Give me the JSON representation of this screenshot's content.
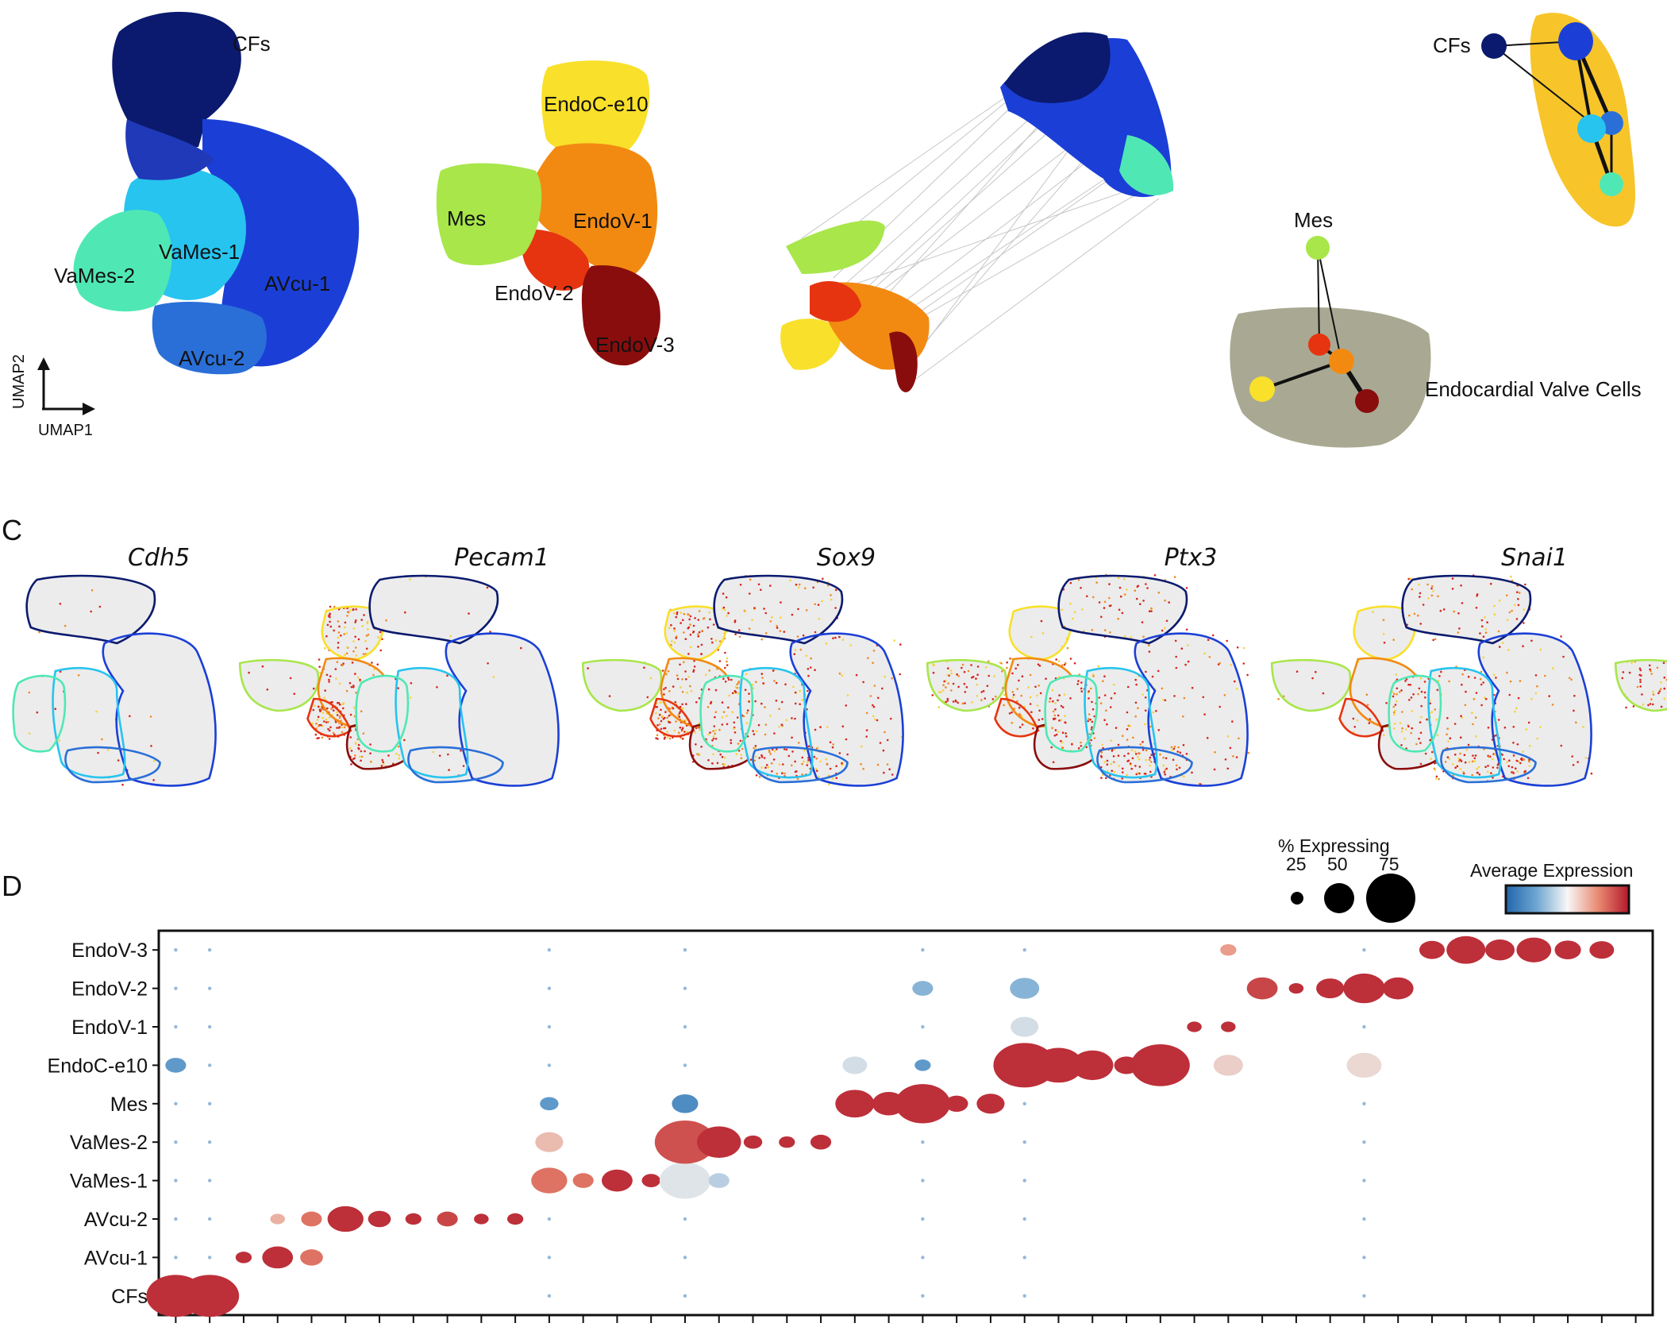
{
  "panel_letters": {
    "c": "C",
    "d": "D"
  },
  "panel_a": {
    "clusters": [
      "CFs",
      "VaMes-1",
      "VaMes-2",
      "AVcu-1",
      "AVcu-2"
    ],
    "axis_x": "UMAP1",
    "axis_y": "UMAP2"
  },
  "panel_a2": {
    "clusters": [
      "EndoC-e10",
      "Mes",
      "EndoV-1",
      "EndoV-2",
      "EndoV-3"
    ]
  },
  "panel_b_graph": {
    "nodes": [
      "CFs",
      "Mes"
    ],
    "group_label": "Endocardial Valve Cells"
  },
  "panel_c": {
    "genes": [
      "Cdh5",
      "Pecam1",
      "Sox9",
      "Ptx3",
      "Snai1"
    ]
  },
  "colors": {
    "CFs": "#0b1a6e",
    "AVcu-1": "#1b3fd6",
    "AVcu-2": "#2a6fd8",
    "VaMes-1": "#27c4ef",
    "VaMes-2": "#4fe8b5",
    "Mes": "#a8e64a",
    "EndoC-e10": "#f9e02a",
    "EndoV-1": "#f28a12",
    "EndoV-2": "#e63410",
    "EndoV-3": "#8a0d0d",
    "hull_yellow": "#f7c52a",
    "hull_olive": "#a9a993"
  },
  "chart_data": {
    "type": "dotplot",
    "legend_size_title": "% Expressing",
    "legend_size_ticks": [
      "25",
      "50",
      "75"
    ],
    "legend_color_title": "Average Expression",
    "y_categories": [
      "EndoV-3",
      "EndoV-2",
      "EndoV-1",
      "EndoC-e10",
      "Mes",
      "VaMes-2",
      "VaMes-1",
      "AVcu-2",
      "AVcu-1",
      "CFs"
    ],
    "n_columns": 44,
    "dots": [
      {
        "row": "CFs",
        "col": 0,
        "pct": 80,
        "expr": 0.9
      },
      {
        "row": "CFs",
        "col": 1,
        "pct": 80,
        "expr": 0.9
      },
      {
        "row": "AVcu-1",
        "col": 2,
        "pct": 6,
        "expr": 0.9
      },
      {
        "row": "AVcu-1",
        "col": 3,
        "pct": 22,
        "expr": 0.9
      },
      {
        "row": "AVcu-1",
        "col": 4,
        "pct": 12,
        "expr": 0.6
      },
      {
        "row": "AVcu-2",
        "col": 3,
        "pct": 5,
        "expr": 0.3
      },
      {
        "row": "AVcu-2",
        "col": 4,
        "pct": 10,
        "expr": 0.6
      },
      {
        "row": "AVcu-2",
        "col": 5,
        "pct": 30,
        "expr": 0.9
      },
      {
        "row": "AVcu-2",
        "col": 6,
        "pct": 12,
        "expr": 0.9
      },
      {
        "row": "AVcu-2",
        "col": 7,
        "pct": 6,
        "expr": 0.9
      },
      {
        "row": "AVcu-2",
        "col": 8,
        "pct": 10,
        "expr": 0.8
      },
      {
        "row": "AVcu-2",
        "col": 9,
        "pct": 5,
        "expr": 0.9
      },
      {
        "row": "AVcu-2",
        "col": 10,
        "pct": 6,
        "expr": 0.9
      },
      {
        "row": "VaMes-1",
        "col": 11,
        "pct": 30,
        "expr": 0.6
      },
      {
        "row": "VaMes-1",
        "col": 12,
        "pct": 10,
        "expr": 0.6
      },
      {
        "row": "VaMes-1",
        "col": 13,
        "pct": 22,
        "expr": 0.9
      },
      {
        "row": "VaMes-1",
        "col": 14,
        "pct": 8,
        "expr": 0.9
      },
      {
        "row": "VaMes-1",
        "col": 15,
        "pct": 60,
        "expr": -0.05
      },
      {
        "row": "VaMes-1",
        "col": 16,
        "pct": 10,
        "expr": -0.2
      },
      {
        "row": "VaMes-2",
        "col": 11,
        "pct": 18,
        "expr": 0.25
      },
      {
        "row": "VaMes-2",
        "col": 15,
        "pct": 85,
        "expr": 0.75
      },
      {
        "row": "VaMes-2",
        "col": 16,
        "pct": 45,
        "expr": 0.9
      },
      {
        "row": "VaMes-2",
        "col": 17,
        "pct": 8,
        "expr": 0.9
      },
      {
        "row": "VaMes-2",
        "col": 18,
        "pct": 6,
        "expr": 0.9
      },
      {
        "row": "VaMes-2",
        "col": 19,
        "pct": 10,
        "expr": 0.9
      },
      {
        "row": "Mes",
        "col": 11,
        "pct": 8,
        "expr": -0.6
      },
      {
        "row": "Mes",
        "col": 15,
        "pct": 16,
        "expr": -0.7
      },
      {
        "row": "Mes",
        "col": 20,
        "pct": 35,
        "expr": 0.9
      },
      {
        "row": "Mes",
        "col": 21,
        "pct": 25,
        "expr": 0.9
      },
      {
        "row": "Mes",
        "col": 22,
        "pct": 70,
        "expr": 0.9
      },
      {
        "row": "Mes",
        "col": 23,
        "pct": 12,
        "expr": 0.9
      },
      {
        "row": "Mes",
        "col": 24,
        "pct": 18,
        "expr": 0.9
      },
      {
        "row": "EndoC-e10",
        "col": 0,
        "pct": 10,
        "expr": -0.6
      },
      {
        "row": "EndoC-e10",
        "col": 20,
        "pct": 14,
        "expr": -0.1
      },
      {
        "row": "EndoC-e10",
        "col": 22,
        "pct": 6,
        "expr": -0.6
      },
      {
        "row": "EndoC-e10",
        "col": 25,
        "pct": 90,
        "expr": 0.9
      },
      {
        "row": "EndoC-e10",
        "col": 26,
        "pct": 55,
        "expr": 0.9
      },
      {
        "row": "EndoC-e10",
        "col": 27,
        "pct": 40,
        "expr": 0.9
      },
      {
        "row": "EndoC-e10",
        "col": 28,
        "pct": 14,
        "expr": 0.9
      },
      {
        "row": "EndoC-e10",
        "col": 29,
        "pct": 80,
        "expr": 0.9
      },
      {
        "row": "EndoC-e10",
        "col": 31,
        "pct": 20,
        "expr": 0.15
      },
      {
        "row": "EndoC-e10",
        "col": 35,
        "pct": 28,
        "expr": 0.1
      },
      {
        "row": "EndoV-1",
        "col": 25,
        "pct": 18,
        "expr": -0.1
      },
      {
        "row": "EndoV-1",
        "col": 30,
        "pct": 5,
        "expr": 0.9
      },
      {
        "row": "EndoV-1",
        "col": 31,
        "pct": 5,
        "expr": 0.9
      },
      {
        "row": "EndoV-2",
        "col": 22,
        "pct": 10,
        "expr": -0.4
      },
      {
        "row": "EndoV-2",
        "col": 25,
        "pct": 20,
        "expr": -0.4
      },
      {
        "row": "EndoV-2",
        "col": 32,
        "pct": 22,
        "expr": 0.8
      },
      {
        "row": "EndoV-2",
        "col": 33,
        "pct": 5,
        "expr": 0.9
      },
      {
        "row": "EndoV-2",
        "col": 34,
        "pct": 18,
        "expr": 0.9
      },
      {
        "row": "EndoV-2",
        "col": 35,
        "pct": 40,
        "expr": 0.9
      },
      {
        "row": "EndoV-2",
        "col": 36,
        "pct": 22,
        "expr": 0.9
      },
      {
        "row": "EndoV-3",
        "col": 31,
        "pct": 6,
        "expr": 0.4
      },
      {
        "row": "EndoV-3",
        "col": 37,
        "pct": 15,
        "expr": 0.9
      },
      {
        "row": "EndoV-3",
        "col": 38,
        "pct": 35,
        "expr": 0.9
      },
      {
        "row": "EndoV-3",
        "col": 39,
        "pct": 20,
        "expr": 0.9
      },
      {
        "row": "EndoV-3",
        "col": 40,
        "pct": 28,
        "expr": 0.9
      },
      {
        "row": "EndoV-3",
        "col": 41,
        "pct": 16,
        "expr": 0.9
      },
      {
        "row": "EndoV-3",
        "col": 42,
        "pct": 14,
        "expr": 0.9
      }
    ]
  }
}
